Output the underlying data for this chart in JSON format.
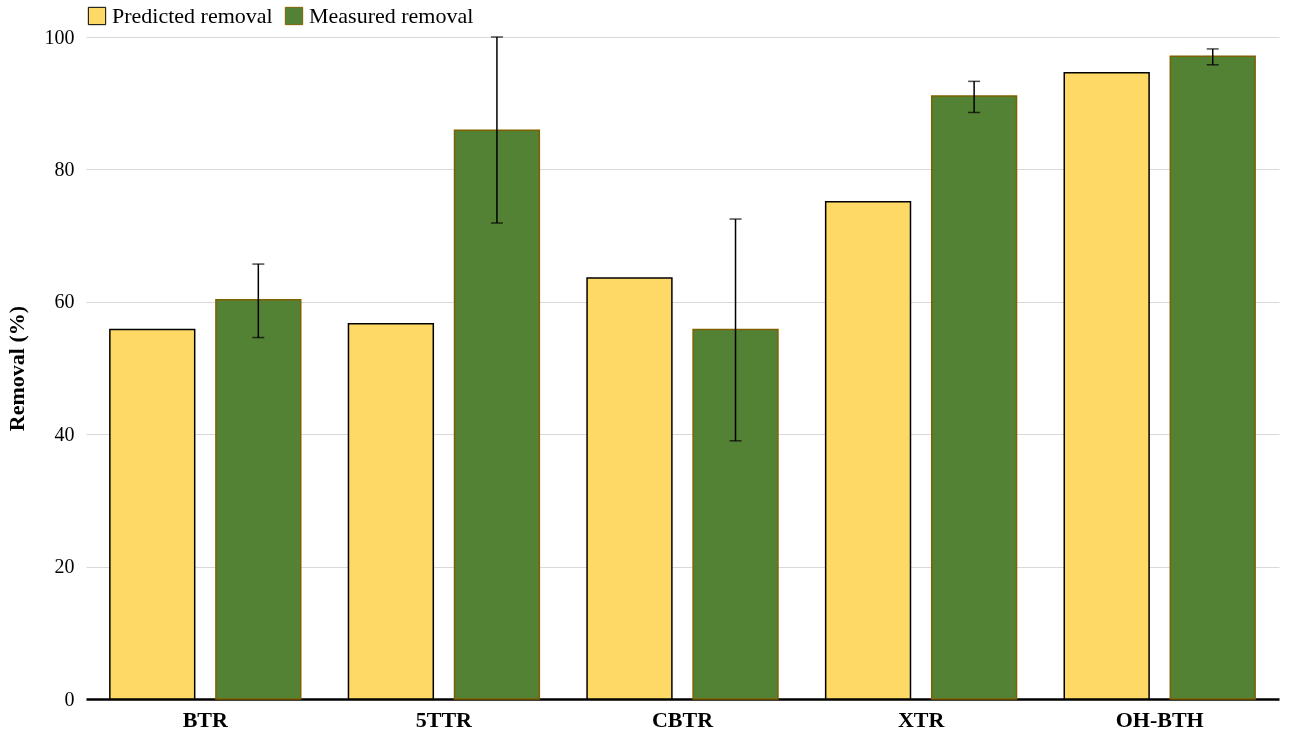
{
  "chart_data": {
    "type": "bar",
    "ylabel": "Removal (%)",
    "categories": [
      "BTR",
      "5TTR",
      "CBTR",
      "XTR",
      "OH-BTH"
    ],
    "series": [
      {
        "name": "Predicted removal",
        "color": "#ffd966",
        "values": [
          55.8,
          56.7,
          63.6,
          75.1,
          94.6
        ]
      },
      {
        "name": "Measured removal",
        "color": "#548235",
        "values": [
          60.3,
          85.9,
          55.8,
          91.1,
          97.1
        ],
        "errors": [
          [
            54.6,
            65.7
          ],
          [
            71.9,
            100
          ],
          [
            39,
            72.5
          ],
          [
            88.6,
            93.3
          ],
          [
            95.8,
            98.2
          ]
        ]
      }
    ],
    "ylim": [
      0,
      100
    ],
    "yticks": [
      0,
      20,
      40,
      60,
      80,
      100
    ],
    "grid": "y",
    "legend": "top"
  }
}
